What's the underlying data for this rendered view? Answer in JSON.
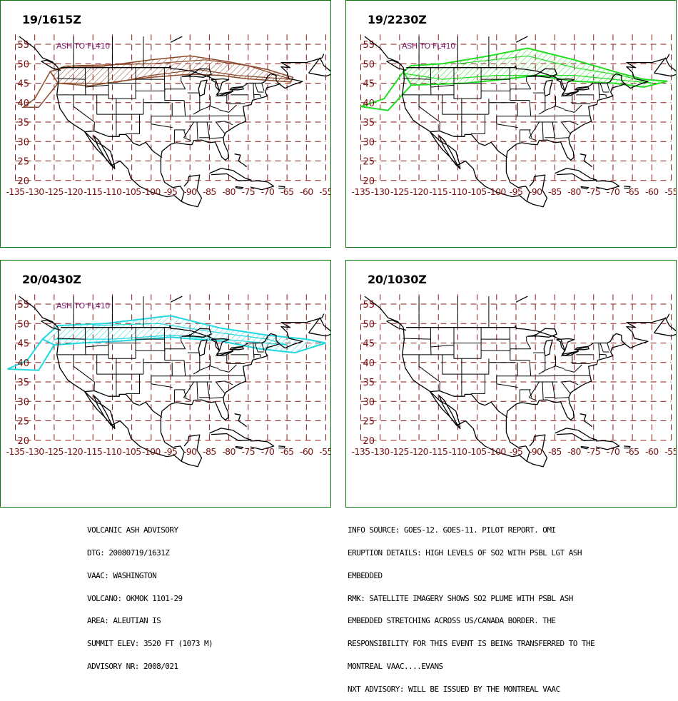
{
  "panels": [
    {
      "time": "19/1615Z",
      "label": "ASH TO FL410",
      "color": "#8b4a2b"
    },
    {
      "time": "19/2230Z",
      "label": "ASH TO FL410",
      "color": "#22dd22"
    },
    {
      "time": "20/0430Z",
      "label": "ASH TO FL410",
      "color": "#22d8e0"
    },
    {
      "time": "20/1030Z",
      "label": "",
      "color": ""
    }
  ],
  "axes": {
    "lat_labels": [
      "55",
      "50",
      "45",
      "40",
      "35",
      "30",
      "25",
      "20"
    ],
    "lon_labels": [
      "-135",
      "-130",
      "-125",
      "-120",
      "-115",
      "-110",
      "-105",
      "-100",
      "-95",
      "-90",
      "-85",
      "-80",
      "-75",
      "-70",
      "-65",
      "-60",
      "-55"
    ],
    "label_color": "#7a1010",
    "grid_color": "#8b1a1a"
  },
  "advisory_left": [
    "VOLCANIC ASH ADVISORY",
    "DTG: 20080719/1631Z",
    "VAAC: WASHINGTON",
    "VOLCANO: OKMOK 1101-29",
    "AREA: ALEUTIAN IS",
    "SUMMIT ELEV: 3520 FT (1073 M)",
    "ADVISORY NR: 2008/021"
  ],
  "advisory_right": [
    "INFO SOURCE: GOES-12. GOES-11. PILOT REPORT. OMI",
    "ERUPTION DETAILS: HIGH LEVELS OF SO2 WITH PSBL LGT ASH",
    "EMBEDDED",
    "RMK: SATELLITE IMAGERY SHOWS SO2 PLUME WITH PSBL ASH",
    "EMBEDDED STRETCHING ACROSS US/CANADA BORDER. THE",
    "RESPONSIBILITY FOR THIS EVENT IS BEING TRANSFERRED TO THE",
    "MONTREAL VAAC....EVANS",
    "NXT ADVISORY: WILL BE ISSUED BY THE MONTREAL VAAC"
  ]
}
